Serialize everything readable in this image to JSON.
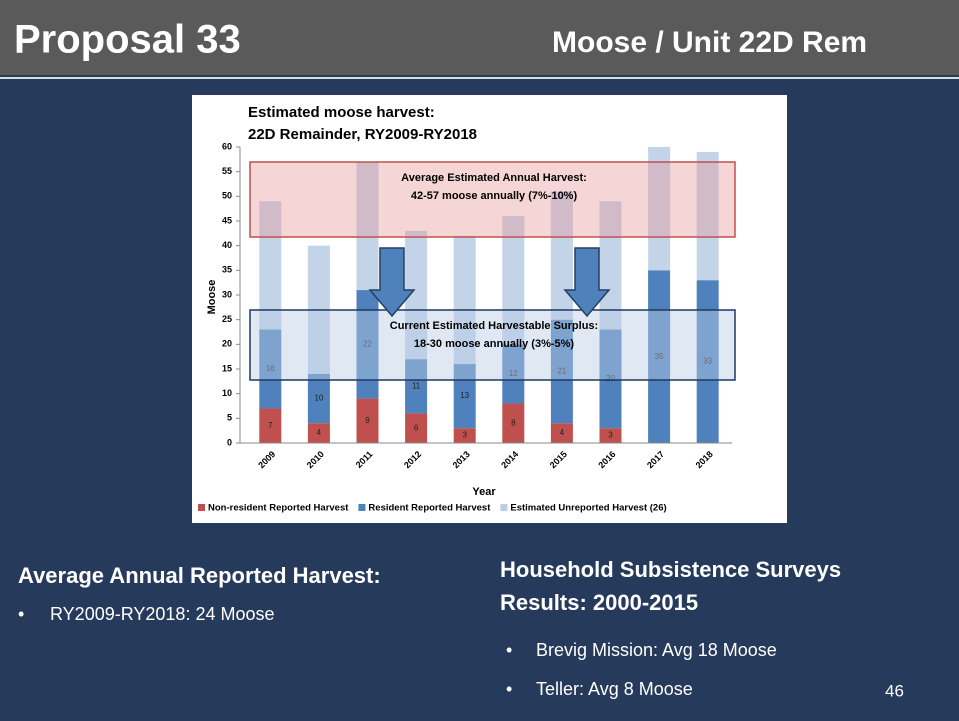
{
  "slide": {
    "title": "Proposal 33",
    "subtitle": "Moose / Unit 22D Rem",
    "left": {
      "heading": "Average Annual Reported Harvest:",
      "bullets": [
        "RY2009-RY2018: 24 Moose"
      ]
    },
    "right": {
      "heading": [
        "Household Subsistence Surveys",
        "Results: 2000-2015"
      ],
      "bullets": [
        "Brevig Mission: Avg 18 Moose",
        "Teller: Avg  8 Moose"
      ]
    },
    "page": "46"
  },
  "chart_data": {
    "type": "stacked_bar",
    "title": [
      "Estimated moose harvest:",
      "22D Remainder, RY2009-RY2018"
    ],
    "x_label": "Year",
    "y_label": "Moose",
    "categories": [
      "2009",
      "2010",
      "2011",
      "2012",
      "2013",
      "2014",
      "2015",
      "2016",
      "2017",
      "2018"
    ],
    "series": [
      {
        "name": "Non-resident Reported Harvest",
        "color": "#c0504d",
        "values": [
          7,
          4,
          9,
          6,
          3,
          8,
          4,
          3,
          null,
          null
        ]
      },
      {
        "name": "Resident Reported Harvest",
        "color": "#4f81bd",
        "values": [
          16,
          10,
          22,
          11,
          13,
          12,
          21,
          20,
          35,
          33
        ]
      },
      {
        "name": "Estimated Unreported Harvest (26)",
        "color": "#b9cde5",
        "values": [
          26,
          26,
          26,
          26,
          26,
          26,
          26,
          26,
          26,
          26
        ]
      }
    ],
    "ylim": [
      0,
      60
    ],
    "yticks": [
      0,
      5,
      10,
      15,
      20,
      25,
      30,
      35,
      40,
      45,
      50,
      55,
      60
    ],
    "annotations": [
      {
        "lines": [
          "Average Estimated Annual Harvest:",
          "42-57 moose annually (7%-10%)"
        ]
      },
      {
        "lines": [
          "Current Estimated Harvestable Surplus:",
          "18-30 moose annually (3%-5%)"
        ]
      }
    ],
    "legend": "bottom"
  }
}
